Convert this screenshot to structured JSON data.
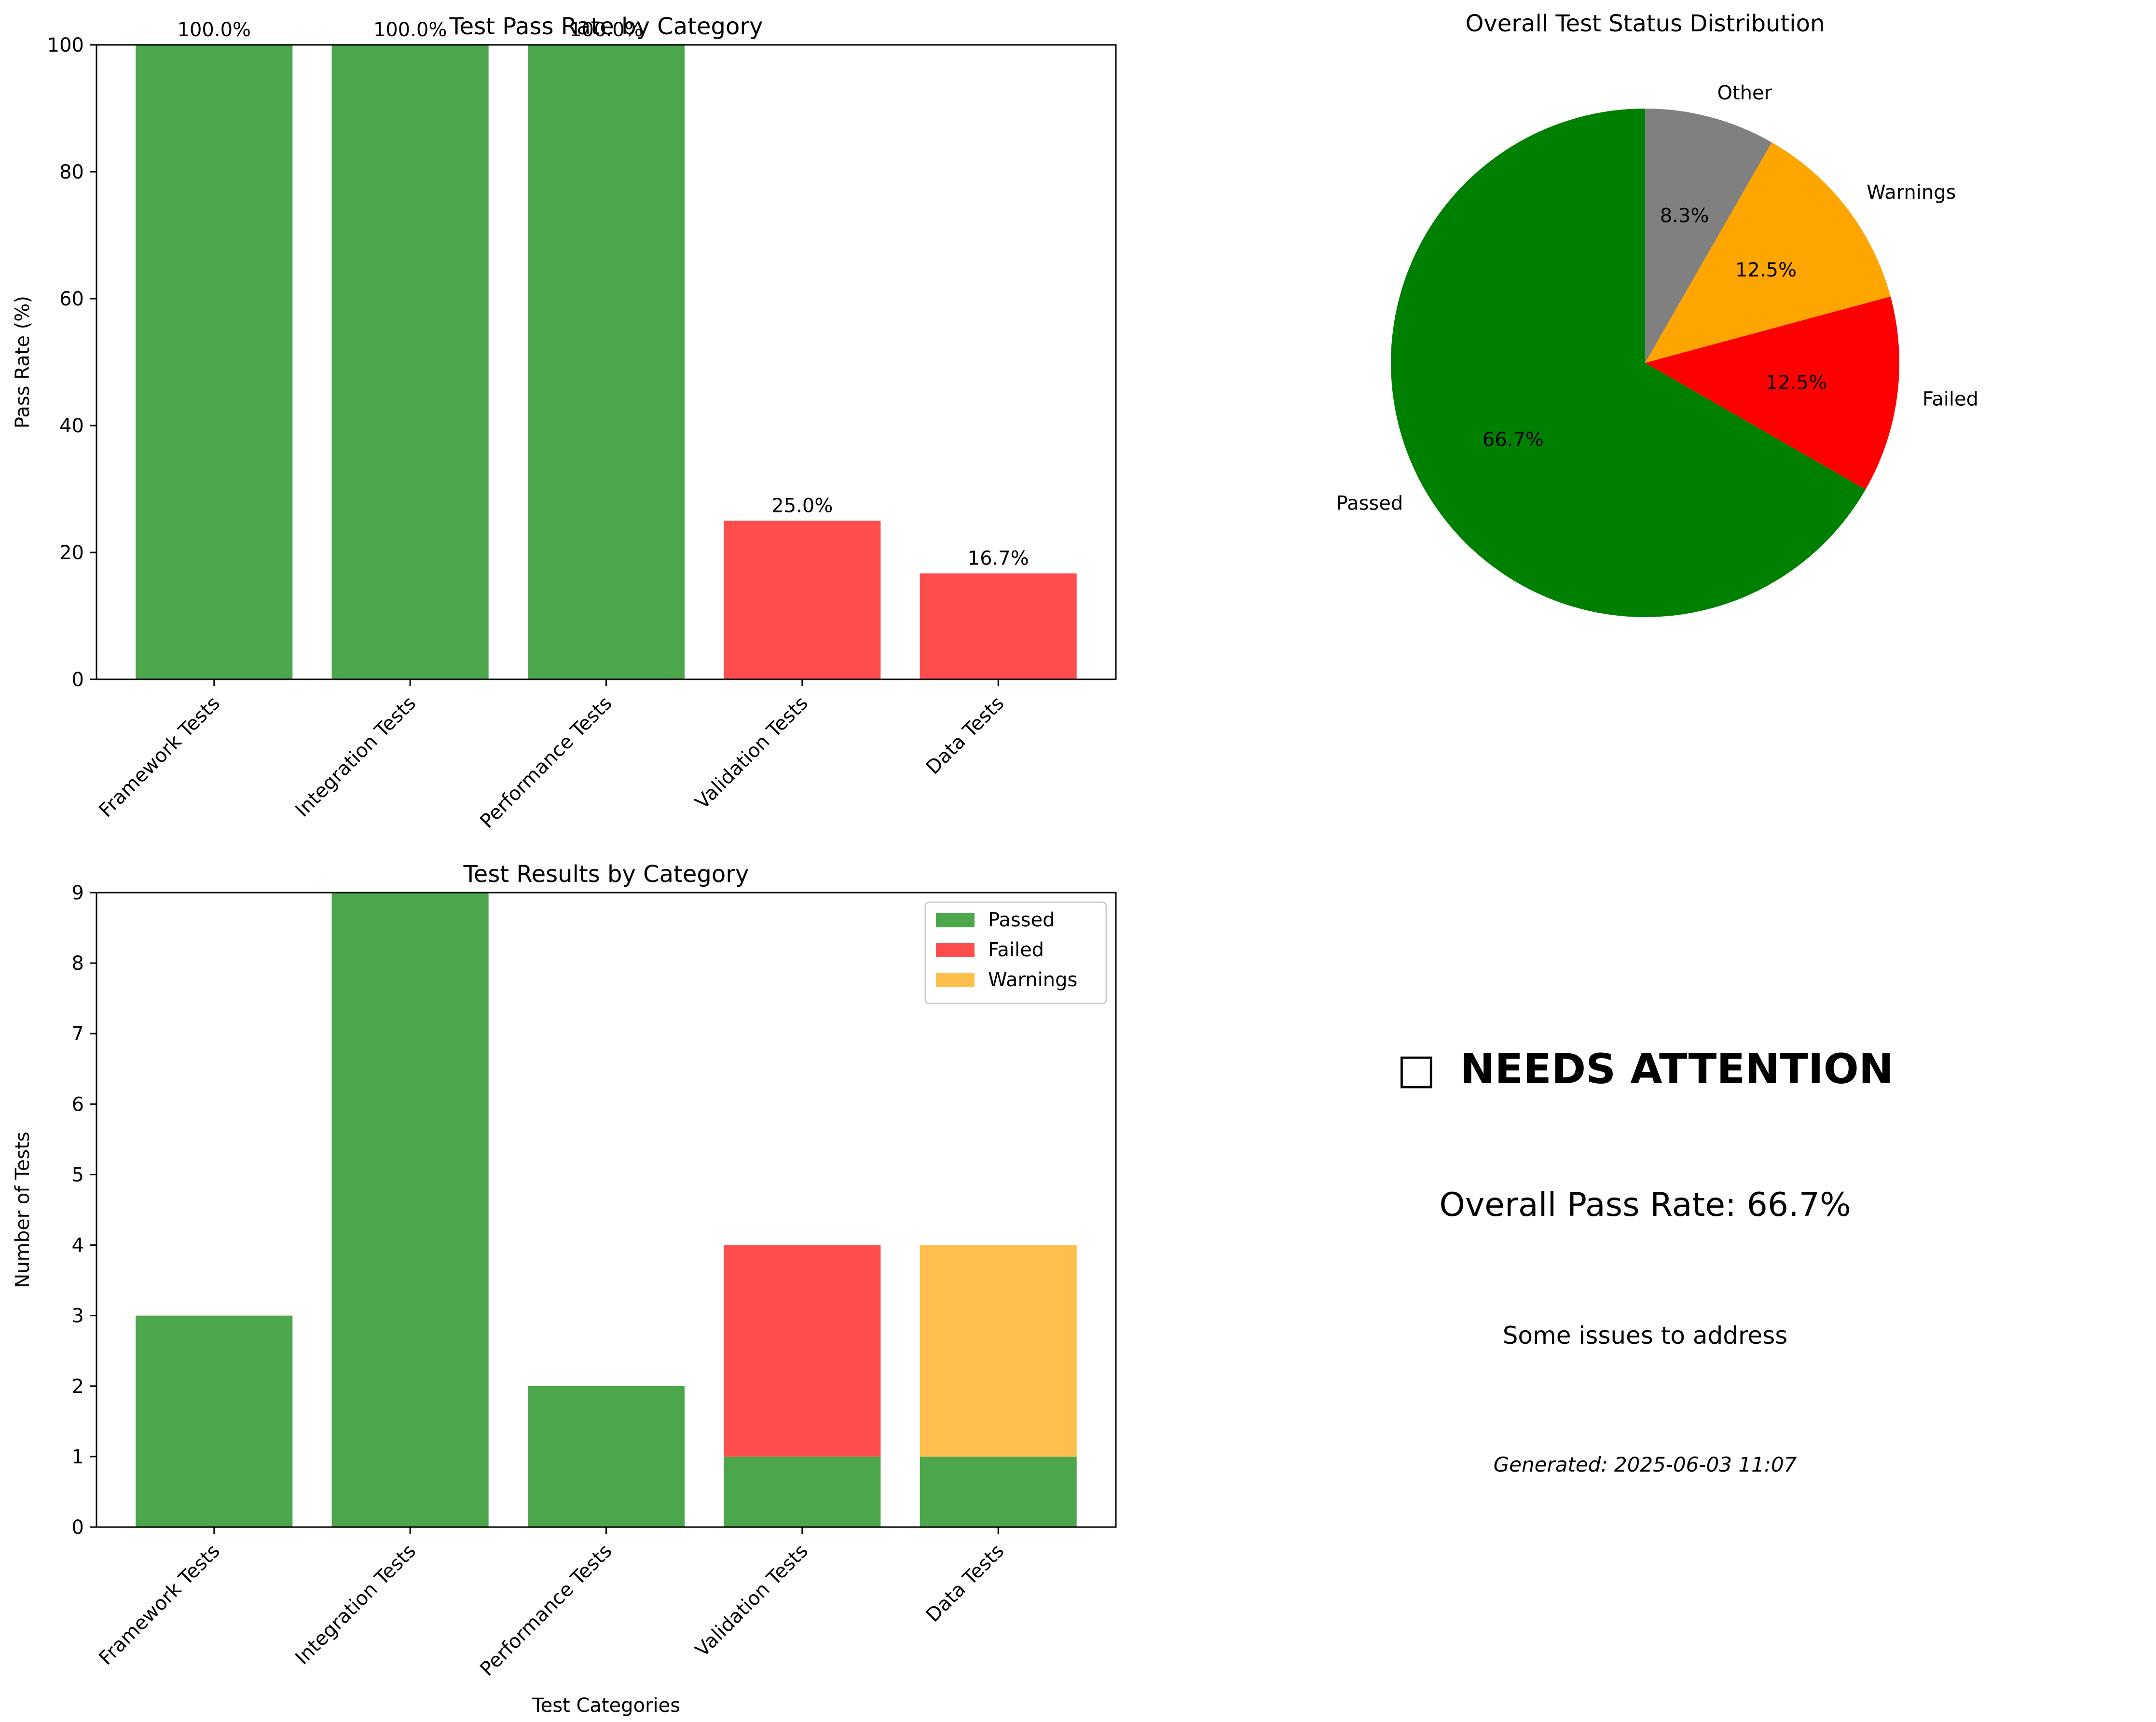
{
  "chart_data": [
    {
      "type": "bar",
      "title": "Test Pass Rate by Category",
      "xlabel": "",
      "ylabel": "Pass Rate (%)",
      "categories": [
        "Framework Tests",
        "Integration Tests",
        "Performance Tests",
        "Validation Tests",
        "Data Tests"
      ],
      "values": [
        100.0,
        100.0,
        100.0,
        25.0,
        16.7
      ],
      "data_labels": [
        "100.0%",
        "100.0%",
        "100.0%",
        "25.0%",
        "16.7%"
      ],
      "bar_colors": [
        "#4ca64c",
        "#4ca64c",
        "#4ca64c",
        "#ff4c4c",
        "#ff4c4c"
      ],
      "ylim": [
        0,
        100
      ],
      "yticks": [
        0,
        20,
        40,
        60,
        80,
        100
      ],
      "grid": false
    },
    {
      "type": "pie",
      "title": "Overall Test Status Distribution",
      "slices": [
        {
          "label": "Passed",
          "value": 66.7,
          "pct_label": "66.7%",
          "color": "#008000"
        },
        {
          "label": "Failed",
          "value": 12.5,
          "pct_label": "12.5%",
          "color": "#ff0000"
        },
        {
          "label": "Warnings",
          "value": 12.5,
          "pct_label": "12.5%",
          "color": "#ffa500"
        },
        {
          "label": "Other",
          "value": 8.3,
          "pct_label": "8.3%",
          "color": "#808080"
        }
      ]
    },
    {
      "type": "bar",
      "stacked": true,
      "title": "Test Results by Category",
      "xlabel": "Test Categories",
      "ylabel": "Number of Tests",
      "categories": [
        "Framework Tests",
        "Integration Tests",
        "Performance Tests",
        "Validation Tests",
        "Data Tests"
      ],
      "series": [
        {
          "name": "Passed",
          "values": [
            3,
            9,
            2,
            1,
            1
          ],
          "color": "#4ca64c"
        },
        {
          "name": "Failed",
          "values": [
            0,
            0,
            0,
            3,
            0
          ],
          "color": "#ff4c4c"
        },
        {
          "name": "Warnings",
          "values": [
            0,
            0,
            0,
            0,
            3
          ],
          "color": "#ffbf4c"
        }
      ],
      "ylim": [
        0,
        9
      ],
      "yticks": [
        0,
        1,
        2,
        3,
        4,
        5,
        6,
        7,
        8,
        9
      ],
      "legend": "top-right",
      "grid": false
    }
  ],
  "summary": {
    "status_icon": "□",
    "status_text": "NEEDS ATTENTION",
    "status_color": "#ffa500",
    "pass_rate_text": "Overall Pass Rate: 66.7%",
    "message": "Some issues to address",
    "generated": "Generated: 2025-06-03 11:07"
  }
}
